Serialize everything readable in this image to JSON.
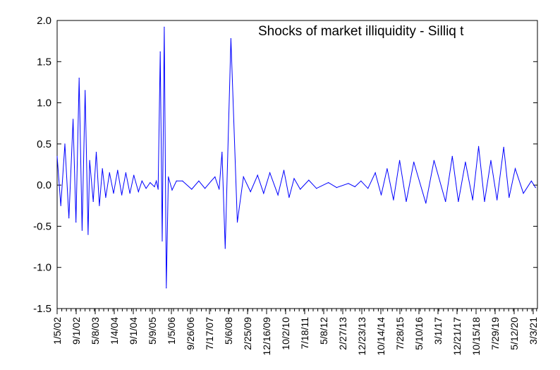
{
  "chart_data": {
    "type": "line",
    "title": "Shocks of market illiquidity - Silliq t",
    "xlabel": "",
    "ylabel": "",
    "ylim": [
      -1.5,
      2.0
    ],
    "yticks": [
      "2.0",
      "1.5",
      "1.0",
      "0.5",
      "0.0",
      "-0.5",
      "-1.0",
      "-1.5"
    ],
    "xtick_labels": [
      "1/5/02",
      "9/1/02",
      "5/8/03",
      "1/4/04",
      "9/1/04",
      "5/9/05",
      "1/5/06",
      "9/26/06",
      "7/17/07",
      "5/6/08",
      "2/25/09",
      "12/16/09",
      "10/2/10",
      "7/18/11",
      "5/8/12",
      "2/27/13",
      "12/23/13",
      "10/14/14",
      "7/28/15",
      "5/10/16",
      "3/1/17",
      "12/21/17",
      "10/15/18",
      "7/29/19",
      "5/12/20",
      "3/3/21"
    ],
    "grid": false,
    "legend": "none",
    "line_color": "#0000ff",
    "series": [
      {
        "name": "",
        "x": [
          "2002-01-05",
          "2002-03-01",
          "2002-05-01",
          "2002-07-01",
          "2002-09-01",
          "2002-10-15",
          "2002-12-01",
          "2003-01-15",
          "2003-03-01",
          "2003-04-15",
          "2003-05-08",
          "2003-07-01",
          "2003-08-15",
          "2003-10-01",
          "2003-11-15",
          "2004-01-04",
          "2004-03-01",
          "2004-05-01",
          "2004-07-01",
          "2004-09-01",
          "2004-11-01",
          "2005-01-01",
          "2005-03-01",
          "2005-05-09",
          "2005-07-01",
          "2005-09-01",
          "2005-11-01",
          "2006-01-05",
          "2006-02-01",
          "2006-03-01",
          "2006-04-01",
          "2006-05-01",
          "2006-06-01",
          "2006-07-01",
          "2006-08-01",
          "2006-09-26",
          "2006-12-01",
          "2007-03-01",
          "2007-07-17",
          "2007-11-01",
          "2008-02-01",
          "2008-05-06",
          "2008-07-01",
          "2008-09-01",
          "2008-10-15",
          "2008-12-01",
          "2009-02-25",
          "2009-06-01",
          "2009-09-01",
          "2009-12-16",
          "2010-04-01",
          "2010-07-01",
          "2010-10-02",
          "2011-02-01",
          "2011-05-01",
          "2011-07-18",
          "2011-10-01",
          "2012-01-01",
          "2012-05-08",
          "2012-09-01",
          "2013-02-27",
          "2013-07-01",
          "2013-12-23",
          "2014-04-01",
          "2014-07-01",
          "2014-10-14",
          "2015-02-01",
          "2015-05-01",
          "2015-07-28",
          "2015-11-01",
          "2016-02-01",
          "2016-05-10",
          "2016-09-01",
          "2017-03-01",
          "2017-07-01",
          "2017-12-21",
          "2018-04-01",
          "2018-07-01",
          "2018-10-15",
          "2019-02-01",
          "2019-05-01",
          "2019-07-29",
          "2019-11-01",
          "2020-02-01",
          "2020-05-12",
          "2020-08-01",
          "2020-11-01",
          "2021-03-03",
          "2021-07-01",
          "2021-09-01"
        ],
        "values": [
          0.35,
          -0.25,
          0.5,
          -0.4,
          0.8,
          -0.45,
          1.3,
          -0.55,
          1.15,
          -0.6,
          0.3,
          -0.2,
          0.4,
          -0.25,
          0.2,
          -0.15,
          0.15,
          -0.1,
          0.18,
          -0.12,
          0.15,
          -0.1,
          0.12,
          -0.08,
          0.05,
          -0.04,
          0.03,
          -0.02,
          0.05,
          -0.05,
          1.62,
          -0.68,
          1.92,
          -1.25,
          0.1,
          -0.06,
          0.05,
          0.05,
          -0.05,
          0.05,
          -0.04,
          0.05,
          0.1,
          -0.05,
          0.4,
          -0.77,
          1.78,
          -0.45,
          0.1,
          -0.08,
          0.12,
          -0.1,
          0.15,
          -0.12,
          0.18,
          -0.15,
          0.08,
          -0.05,
          0.06,
          -0.04,
          0.03,
          -0.03,
          0.02,
          -0.02,
          0.05,
          -0.04,
          0.15,
          -0.12,
          0.2,
          -0.18,
          0.3,
          -0.2,
          0.28,
          -0.22,
          0.3,
          -0.2,
          0.35,
          -0.2,
          0.28,
          -0.18,
          0.47,
          -0.2,
          0.3,
          -0.18,
          0.46,
          -0.15,
          0.2,
          -0.1,
          0.05,
          -0.03
        ]
      }
    ]
  }
}
